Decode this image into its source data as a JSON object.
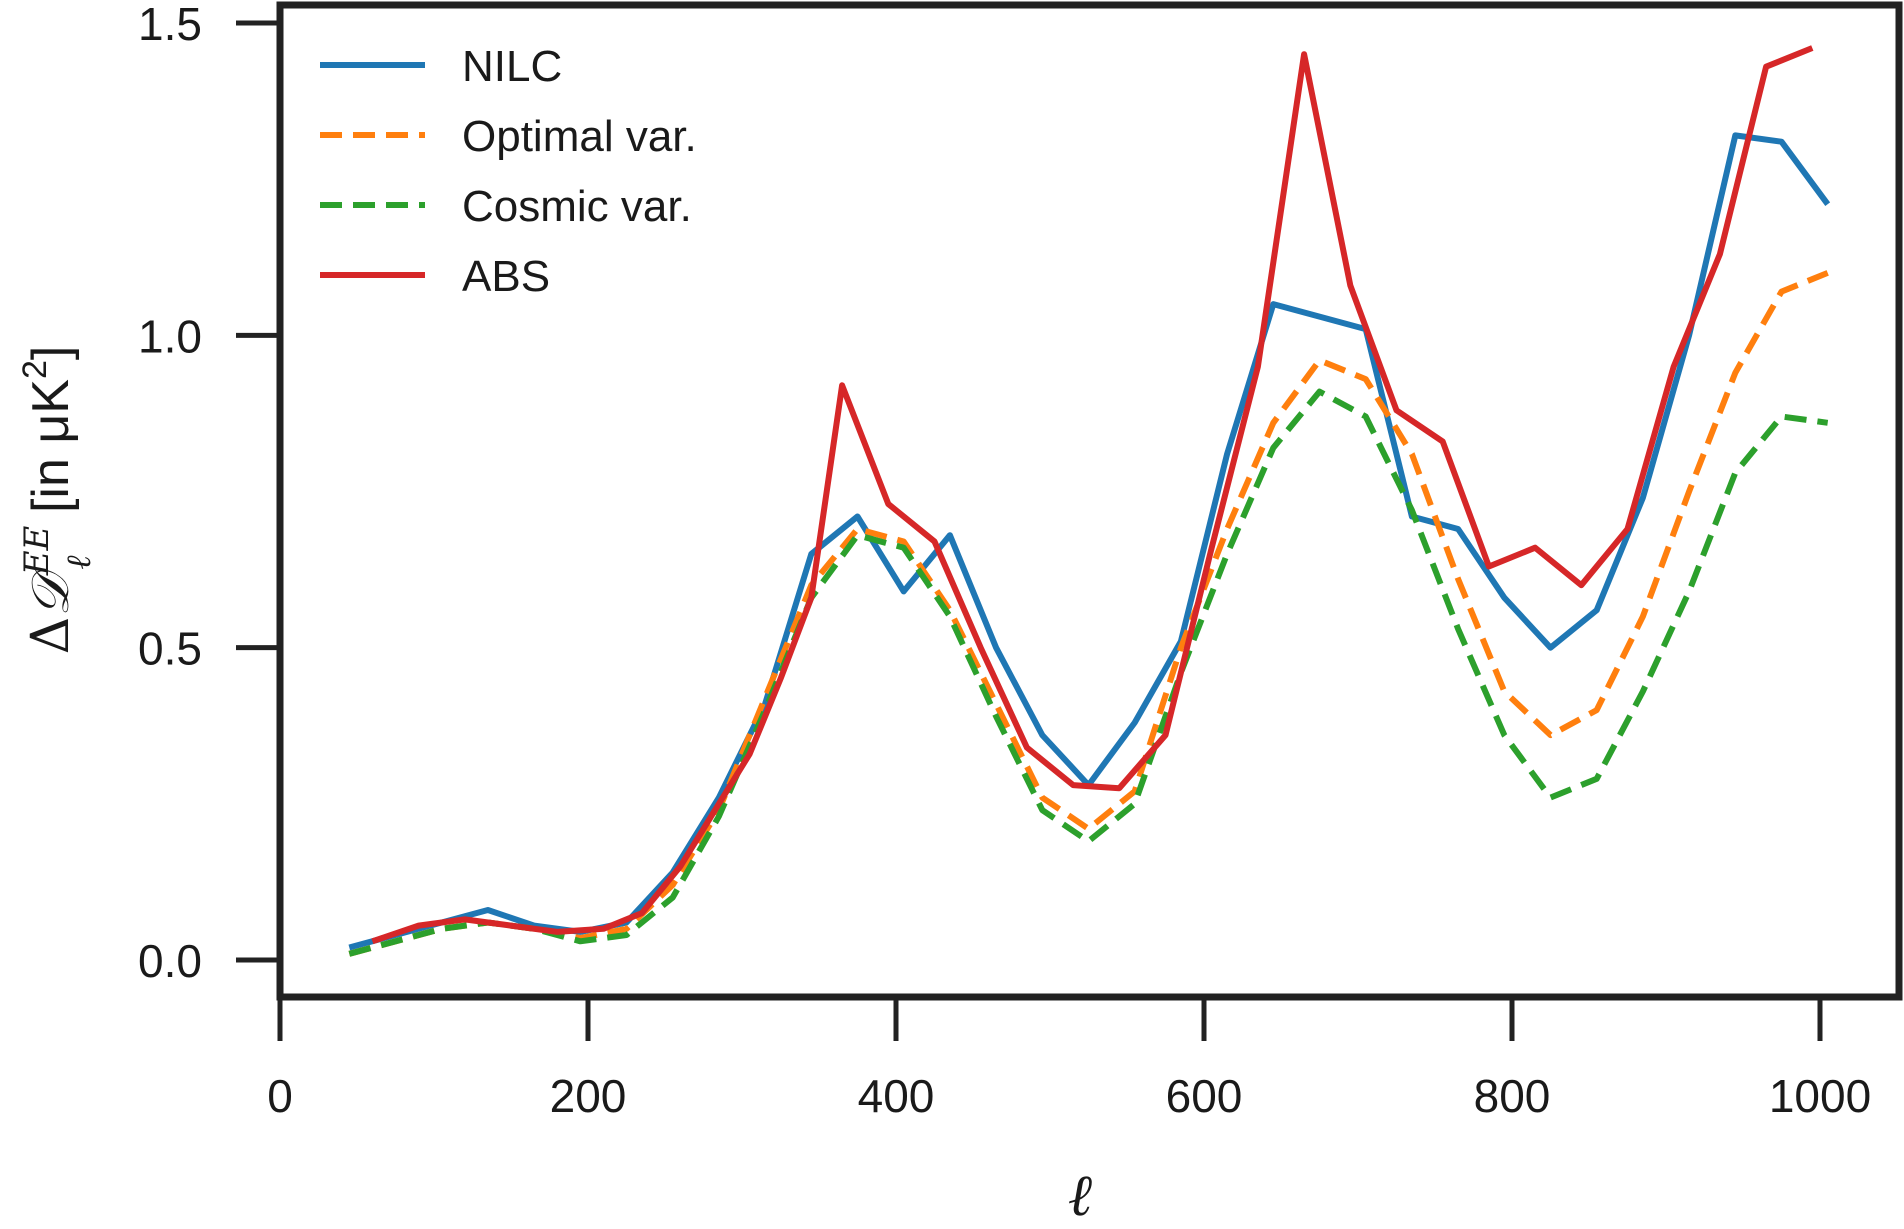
{
  "chart_data": {
    "type": "line",
    "title": "",
    "xlabel": "ℓ",
    "ylabel": "ΔD_ℓ^EE [in μK²]",
    "ylabel_parts": {
      "delta": "Δ",
      "symbol": "𝒟",
      "superscript": "EE",
      "subscript": "ℓ",
      "unit": " [in μK",
      "unit_power": "2",
      "unit_close": "]"
    },
    "xlim": [
      0,
      1010
    ],
    "ylim": [
      -0.06,
      1.57
    ],
    "xticks": [
      0,
      200,
      400,
      600,
      800,
      1000
    ],
    "xtick_labels": [
      "0",
      "200",
      "400",
      "600",
      "800",
      "1000"
    ],
    "yticks": [
      0.0,
      0.5,
      1.0,
      1.5
    ],
    "ytick_labels": [
      "0.0",
      "0.5",
      "1.0",
      "1.5"
    ],
    "grid": false,
    "legend_position": "top-left",
    "series": [
      {
        "name": "NILC",
        "color": "#1f77b4",
        "dash": "solid",
        "x": [
          45,
          75,
          105,
          135,
          165,
          195,
          225,
          255,
          285,
          315,
          345,
          375,
          405,
          435,
          465,
          495,
          525,
          555,
          585,
          615,
          645,
          675,
          705,
          735,
          765,
          795,
          825,
          855,
          885,
          915,
          945,
          975,
          1005
        ],
        "y": [
          0.02,
          0.04,
          0.06,
          0.08,
          0.055,
          0.045,
          0.06,
          0.14,
          0.26,
          0.41,
          0.65,
          0.71,
          0.59,
          0.68,
          0.5,
          0.36,
          0.28,
          0.38,
          0.51,
          0.81,
          1.05,
          1.03,
          1.01,
          0.71,
          0.69,
          0.58,
          0.5,
          0.56,
          0.74,
          1.0,
          1.32,
          1.31,
          1.21
        ]
      },
      {
        "name": "Optimal var.",
        "color": "#ff7f0e",
        "dash": "dashed",
        "x": [
          45,
          75,
          105,
          135,
          165,
          195,
          225,
          255,
          285,
          315,
          345,
          375,
          405,
          435,
          465,
          495,
          525,
          555,
          585,
          615,
          645,
          675,
          705,
          735,
          765,
          795,
          825,
          855,
          885,
          915,
          945,
          975,
          1005
        ],
        "y": [
          0.01,
          0.03,
          0.05,
          0.06,
          0.05,
          0.035,
          0.05,
          0.12,
          0.24,
          0.42,
          0.6,
          0.69,
          0.67,
          0.56,
          0.41,
          0.26,
          0.21,
          0.27,
          0.5,
          0.69,
          0.86,
          0.96,
          0.93,
          0.81,
          0.61,
          0.43,
          0.36,
          0.4,
          0.55,
          0.75,
          0.94,
          1.07,
          1.1
        ]
      },
      {
        "name": "Cosmic var.",
        "color": "#2ca02c",
        "dash": "dashed",
        "x": [
          45,
          75,
          105,
          135,
          165,
          195,
          225,
          255,
          285,
          315,
          345,
          375,
          405,
          435,
          465,
          495,
          525,
          555,
          585,
          615,
          645,
          675,
          705,
          735,
          765,
          795,
          825,
          855,
          885,
          915,
          945,
          975,
          1005
        ],
        "y": [
          0.01,
          0.03,
          0.05,
          0.06,
          0.05,
          0.03,
          0.04,
          0.1,
          0.23,
          0.4,
          0.58,
          0.68,
          0.66,
          0.55,
          0.39,
          0.24,
          0.19,
          0.25,
          0.46,
          0.65,
          0.82,
          0.91,
          0.87,
          0.72,
          0.53,
          0.36,
          0.26,
          0.29,
          0.43,
          0.59,
          0.78,
          0.87,
          0.86
        ]
      },
      {
        "name": "ABS",
        "color": "#d62728",
        "dash": "solid",
        "x": [
          60,
          90,
          120,
          150,
          180,
          210,
          235,
          260,
          285,
          305,
          325,
          345,
          365,
          395,
          425,
          455,
          485,
          515,
          545,
          575,
          605,
          635,
          665,
          695,
          725,
          755,
          785,
          815,
          845,
          875,
          905,
          935,
          965,
          995
        ],
        "y": [
          0.03,
          0.055,
          0.065,
          0.055,
          0.045,
          0.05,
          0.075,
          0.15,
          0.25,
          0.33,
          0.45,
          0.58,
          0.92,
          0.73,
          0.67,
          0.5,
          0.34,
          0.28,
          0.275,
          0.36,
          0.66,
          0.95,
          1.45,
          1.08,
          0.88,
          0.83,
          0.63,
          0.66,
          0.6,
          0.69,
          0.95,
          1.13,
          1.43,
          1.46
        ]
      }
    ]
  }
}
